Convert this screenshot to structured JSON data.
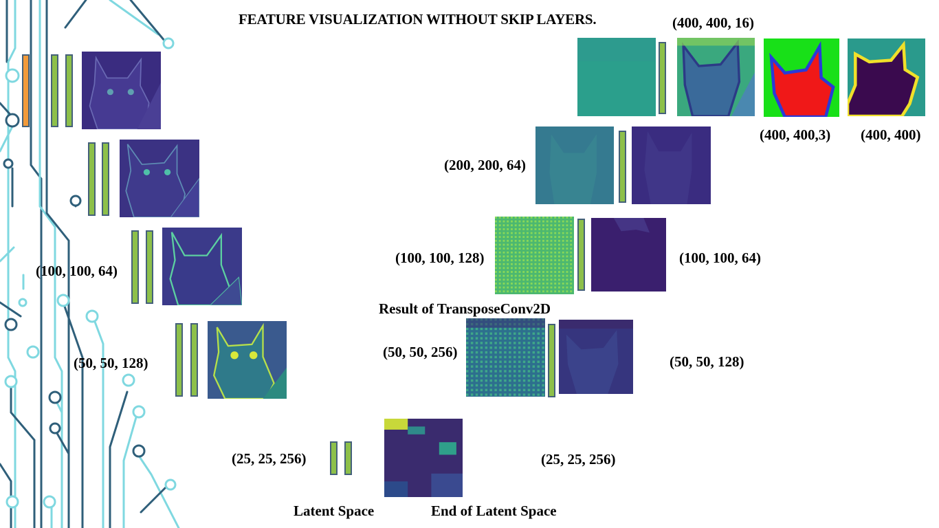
{
  "title": "FEATURE VISUALIZATION WITHOUT SKIP LAYERS.",
  "labels": {
    "enc_100": "(100, 100, 64)",
    "enc_50": "(50, 50, 128)",
    "latent_in": "(25, 25, 256)",
    "latent_out": "(25, 25, 256)",
    "latent_space": "Latent Space",
    "end_latent": "End of Latent Space",
    "dec_50_256": "(50, 50, 256)",
    "dec_50_128": "(50, 50, 128)",
    "transpose_result": "Result of TransposeConv2D",
    "dec_100_128": "(100, 100, 128)",
    "dec_100_64": "(100, 100, 64)",
    "dec_200_64": "(200, 200, 64)",
    "dec_400_16": "(400, 400, 16)",
    "out_rgb": "(400, 400,3)",
    "out_mask": "(400, 400)"
  },
  "colors": {
    "bar_green": "#8dc04a",
    "bar_orange": "#f29a3a",
    "bar_border": "#44607a",
    "circuit_dark": "#2f5f7a",
    "circuit_light": "#7fd8e0"
  }
}
